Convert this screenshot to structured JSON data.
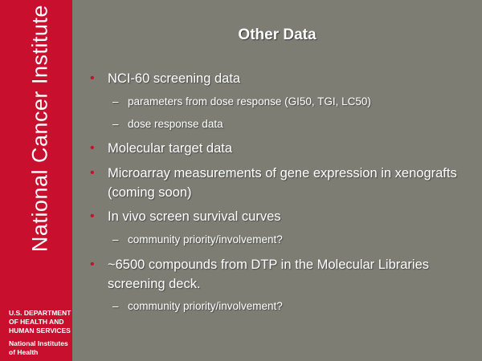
{
  "sidebar": {
    "title": "National Cancer Institute",
    "hhs_lines": [
      "U.S. DEPARTMENT",
      "OF HEALTH AND",
      "HUMAN SERVICES"
    ],
    "nih_lines": [
      "National Institutes",
      "of Health"
    ]
  },
  "slide": {
    "title": "Other Data",
    "bullets": [
      {
        "level": 1,
        "marker": "•",
        "text": "NCI-60 screening data"
      },
      {
        "level": 2,
        "marker": "–",
        "text": "parameters from dose response (GI50, TGI, LC50)"
      },
      {
        "level": 2,
        "marker": "–",
        "text": "dose response data"
      },
      {
        "level": 1,
        "marker": "•",
        "text": "Molecular target data"
      },
      {
        "level": 1,
        "marker": "•",
        "text": "Microarray measurements of gene expression in xenografts (coming soon)"
      },
      {
        "level": 1,
        "marker": "•",
        "text": "In vivo screen survival curves"
      },
      {
        "level": 2,
        "marker": "–",
        "text": "community priority/involvement?"
      },
      {
        "level": 1,
        "marker": "•",
        "text": "~6500 compounds from DTP in the Molecular Libraries screening deck."
      },
      {
        "level": 2,
        "marker": "–",
        "text": "community priority/involvement?"
      }
    ]
  },
  "colors": {
    "sidebar": "#c8102e",
    "background": "#7d7d73",
    "bullet_marker": "#c8102e",
    "text": "#ffffff"
  }
}
